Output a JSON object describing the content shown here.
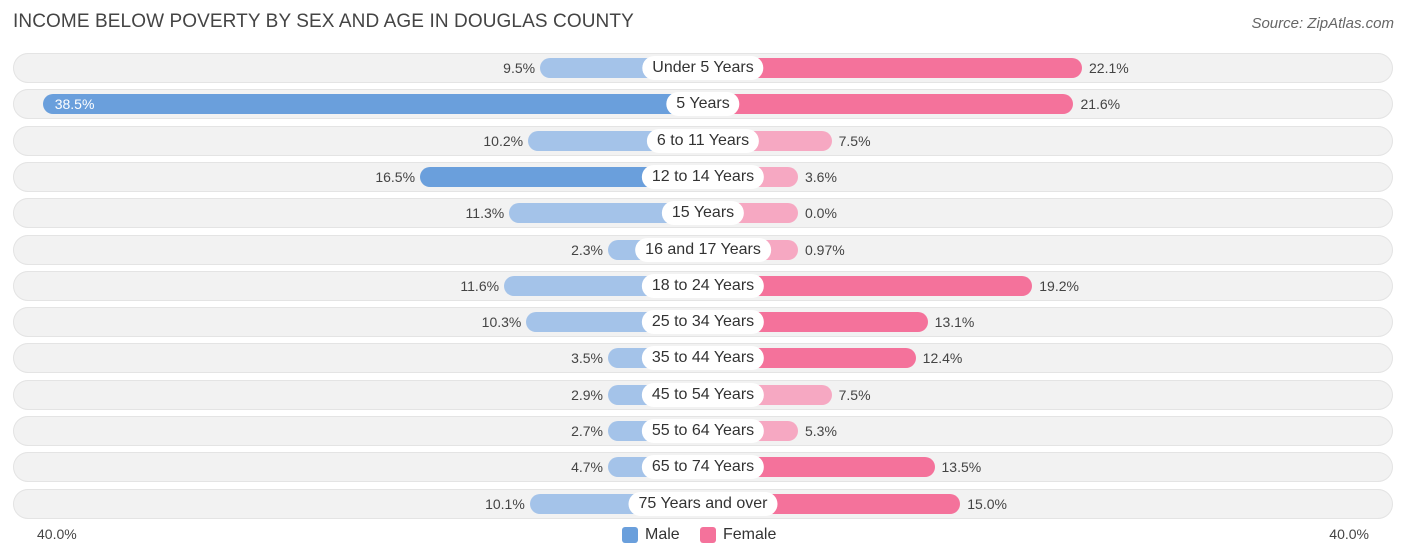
{
  "title": "INCOME BELOW POVERTY BY SEX AND AGE IN DOUGLAS COUNTY",
  "source": "Source: ZipAtlas.com",
  "colors": {
    "male": "#a4c3e9",
    "male_strong": "#6a9fdc",
    "female": "#f6a8c2",
    "female_strong": "#f4729b"
  },
  "chart_data": {
    "type": "bar",
    "orientation": "horizontal-diverging",
    "categories": [
      "Under 5 Years",
      "5 Years",
      "6 to 11 Years",
      "12 to 14 Years",
      "15 Years",
      "16 and 17 Years",
      "18 to 24 Years",
      "25 to 34 Years",
      "35 to 44 Years",
      "45 to 54 Years",
      "55 to 64 Years",
      "65 to 74 Years",
      "75 Years and over"
    ],
    "series": [
      {
        "name": "Male",
        "values": [
          9.5,
          38.5,
          10.2,
          16.5,
          11.3,
          2.3,
          11.6,
          10.3,
          3.5,
          2.9,
          2.7,
          4.7,
          10.1
        ],
        "labels": [
          "9.5%",
          "38.5%",
          "10.2%",
          "16.5%",
          "11.3%",
          "2.3%",
          "11.6%",
          "10.3%",
          "3.5%",
          "2.9%",
          "2.7%",
          "4.7%",
          "10.1%"
        ]
      },
      {
        "name": "Female",
        "values": [
          22.1,
          21.6,
          7.5,
          3.6,
          0.0,
          0.97,
          19.2,
          13.1,
          12.4,
          7.5,
          5.3,
          13.5,
          15.0
        ],
        "labels": [
          "22.1%",
          "21.6%",
          "7.5%",
          "3.6%",
          "0.0%",
          "0.97%",
          "19.2%",
          "13.1%",
          "12.4%",
          "7.5%",
          "5.3%",
          "13.5%",
          "15.0%"
        ]
      }
    ],
    "xlim": [
      0,
      40
    ],
    "axis_left_label": "40.0%",
    "axis_right_label": "40.0%",
    "legend_position": "bottom-center"
  },
  "legend": {
    "male": "Male",
    "female": "Female"
  }
}
